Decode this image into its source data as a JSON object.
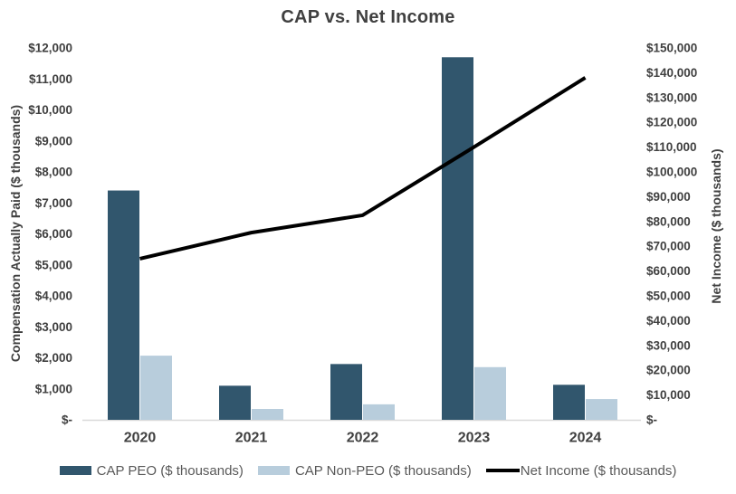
{
  "title": "CAP vs. Net Income",
  "colors": {
    "cap_peo_bar": "#31566D",
    "cap_non_peo_bar": "#B8CDDC",
    "net_income_line": "#000000",
    "axis_line": "#D9D9D9",
    "label_text": "#404040",
    "legend_text": "#595959"
  },
  "chart_data": {
    "type": "bar+line",
    "title": "CAP vs. Net Income",
    "categories": [
      "2020",
      "2021",
      "2022",
      "2023",
      "2024"
    ],
    "bar_series": [
      {
        "name": "CAP PEO ($ thousands)",
        "color": "#31566D",
        "axis": "left",
        "values": [
          7400,
          1100,
          1800,
          11700,
          1130
        ]
      },
      {
        "name": "CAP Non-PEO ($ thousands)",
        "color": "#B8CDDC",
        "axis": "left",
        "values": [
          2070,
          350,
          500,
          1700,
          670
        ]
      }
    ],
    "line_series": {
      "name": "Net Income ($ thousands)",
      "color": "#000000",
      "axis": "right",
      "values": [
        65000,
        75500,
        82500,
        110000,
        138000
      ]
    },
    "left_axis": {
      "label": "Compensation Actually Paid ($ thousands)",
      "min": 0,
      "max": 12000,
      "step": 1000,
      "ticks_top_to_bottom": [
        "$12,000",
        "$11,000",
        "$10,000",
        "$9,000",
        "$8,000",
        "$7,000",
        "$6,000",
        "$5,000",
        "$4,000",
        "$3,000",
        "$2,000",
        "$1,000",
        "$-"
      ]
    },
    "right_axis": {
      "label": "Net Income ($ thousands)",
      "min": 0,
      "max": 150000,
      "step": 10000,
      "ticks_top_to_bottom": [
        "$150,000",
        "$140,000",
        "$130,000",
        "$120,000",
        "$110,000",
        "$100,000",
        "$90,000",
        "$80,000",
        "$70,000",
        "$60,000",
        "$50,000",
        "$40,000",
        "$30,000",
        "$20,000",
        "$10,000",
        "$-"
      ]
    },
    "legend_position": "bottom",
    "grid": false
  }
}
